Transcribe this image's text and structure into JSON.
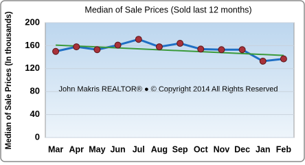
{
  "chart_data": {
    "type": "line",
    "title": "Median of Sale Prices (Sold last 12 months)",
    "ylabel": "Median of Sale Prices (In thousands)",
    "annotation": "John Makris REALTOR® ● © Copyright 2014 All Rights Reserved",
    "categories": [
      "Mar",
      "Apr",
      "May",
      "Jun",
      "Jul",
      "Aug",
      "Sep",
      "Oct",
      "Nov",
      "Dec",
      "Jan",
      "Feb"
    ],
    "series": [
      {
        "color": "#1f6fc4",
        "marker_color": "#a8323a",
        "values": [
          150,
          158,
          153,
          161,
          171,
          158,
          164,
          154,
          153,
          153,
          133,
          137
        ]
      }
    ],
    "trendline": {
      "start": 161,
      "end": 143,
      "color": "#3a9a3a"
    },
    "ylim": [
      0,
      200
    ],
    "yticks": [
      0,
      40,
      80,
      120,
      160,
      200
    ],
    "grid": true
  }
}
